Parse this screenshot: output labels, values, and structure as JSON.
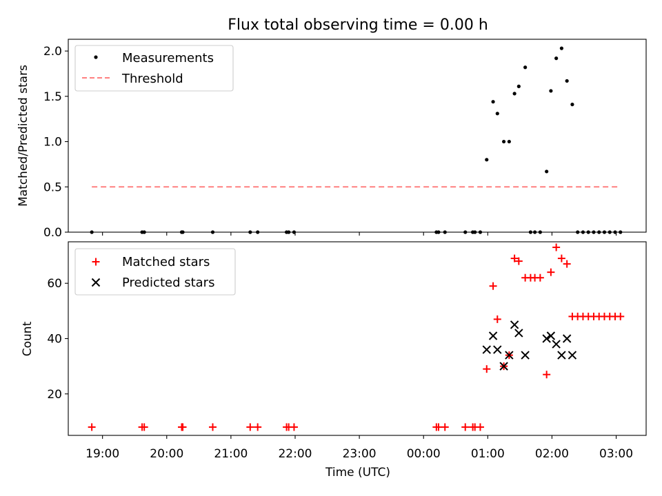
{
  "title": "Flux total observing time = 0.00 h",
  "xlabel": "Time (UTC)",
  "x_ticks": [
    "19:00",
    "20:00",
    "21:00",
    "22:00",
    "23:00",
    "00:00",
    "01:00",
    "02:00",
    "03:00"
  ],
  "colors": {
    "measurements": "#000000",
    "threshold": "#ff7f7f",
    "matched": "#ff0000",
    "predicted": "#000000"
  },
  "chart_data": [
    {
      "type": "scatter",
      "ylabel": "Matched/Predicted stars",
      "x_range": [
        "18:28",
        "03:28"
      ],
      "ylim": [
        0,
        2.13
      ],
      "y_ticks": [
        "0.0",
        "0.5",
        "1.0",
        "1.5",
        "2.0"
      ],
      "legend_position": "upper-left",
      "threshold": {
        "name": "Threshold",
        "value": 0.5,
        "x_range": [
          "18:50",
          "03:02"
        ],
        "style": "dashed"
      },
      "series": [
        {
          "name": "Measurements",
          "marker": "dot",
          "points": [
            [
              "18:50",
              0
            ],
            [
              "19:37",
              0
            ],
            [
              "19:39",
              0
            ],
            [
              "20:14",
              0
            ],
            [
              "20:15",
              0
            ],
            [
              "20:43",
              0
            ],
            [
              "21:18",
              0
            ],
            [
              "21:25",
              0
            ],
            [
              "21:52",
              0
            ],
            [
              "21:54",
              0
            ],
            [
              "21:59",
              0
            ],
            [
              "00:12",
              0
            ],
            [
              "00:14",
              0
            ],
            [
              "00:20",
              0
            ],
            [
              "00:39",
              0
            ],
            [
              "00:46",
              0
            ],
            [
              "00:48",
              0
            ],
            [
              "00:53",
              0
            ],
            [
              "00:59",
              0.8
            ],
            [
              "01:05",
              1.44
            ],
            [
              "01:09",
              1.31
            ],
            [
              "01:15",
              1.0
            ],
            [
              "01:20",
              1.0
            ],
            [
              "01:25",
              1.53
            ],
            [
              "01:29",
              1.61
            ],
            [
              "01:35",
              1.82
            ],
            [
              "01:40",
              0
            ],
            [
              "01:44",
              0
            ],
            [
              "01:49",
              0
            ],
            [
              "01:55",
              0.67
            ],
            [
              "01:59",
              1.56
            ],
            [
              "02:04",
              1.92
            ],
            [
              "02:09",
              2.03
            ],
            [
              "02:14",
              1.67
            ],
            [
              "02:19",
              1.41
            ],
            [
              "02:24",
              0
            ],
            [
              "02:29",
              0
            ],
            [
              "02:34",
              0
            ],
            [
              "02:39",
              0
            ],
            [
              "02:44",
              0
            ],
            [
              "02:49",
              0
            ],
            [
              "02:54",
              0
            ],
            [
              "02:59",
              0
            ],
            [
              "03:04",
              0
            ]
          ]
        }
      ]
    },
    {
      "type": "scatter",
      "ylabel": "Count",
      "x_range": [
        "18:28",
        "03:28"
      ],
      "ylim": [
        5,
        75
      ],
      "y_ticks": [
        "20",
        "40",
        "60"
      ],
      "legend_position": "upper-left",
      "series": [
        {
          "name": "Matched stars",
          "marker": "plus",
          "points": [
            [
              "18:50",
              8
            ],
            [
              "19:37",
              8
            ],
            [
              "19:39",
              8
            ],
            [
              "20:14",
              8
            ],
            [
              "20:15",
              8
            ],
            [
              "20:43",
              8
            ],
            [
              "21:18",
              8
            ],
            [
              "21:25",
              8
            ],
            [
              "21:52",
              8
            ],
            [
              "21:54",
              8
            ],
            [
              "21:59",
              8
            ],
            [
              "00:12",
              8
            ],
            [
              "00:14",
              8
            ],
            [
              "00:20",
              8
            ],
            [
              "00:39",
              8
            ],
            [
              "00:46",
              8
            ],
            [
              "00:48",
              8
            ],
            [
              "00:53",
              8
            ],
            [
              "00:59",
              29
            ],
            [
              "01:05",
              59
            ],
            [
              "01:09",
              47
            ],
            [
              "01:15",
              30
            ],
            [
              "01:20",
              34
            ],
            [
              "01:25",
              69
            ],
            [
              "01:29",
              68
            ],
            [
              "01:35",
              62
            ],
            [
              "01:40",
              62
            ],
            [
              "01:44",
              62
            ],
            [
              "01:49",
              62
            ],
            [
              "01:55",
              27
            ],
            [
              "01:59",
              64
            ],
            [
              "02:04",
              73
            ],
            [
              "02:09",
              69
            ],
            [
              "02:14",
              67
            ],
            [
              "02:19",
              48
            ],
            [
              "02:24",
              48
            ],
            [
              "02:29",
              48
            ],
            [
              "02:34",
              48
            ],
            [
              "02:39",
              48
            ],
            [
              "02:44",
              48
            ],
            [
              "02:49",
              48
            ],
            [
              "02:54",
              48
            ],
            [
              "02:59",
              48
            ],
            [
              "03:04",
              48
            ]
          ]
        },
        {
          "name": "Predicted stars",
          "marker": "x",
          "points": [
            [
              "00:59",
              36
            ],
            [
              "01:05",
              41
            ],
            [
              "01:09",
              36
            ],
            [
              "01:15",
              30
            ],
            [
              "01:20",
              34
            ],
            [
              "01:25",
              45
            ],
            [
              "01:29",
              42
            ],
            [
              "01:35",
              34
            ],
            [
              "01:55",
              40
            ],
            [
              "01:59",
              41
            ],
            [
              "02:04",
              38
            ],
            [
              "02:09",
              34
            ],
            [
              "02:14",
              40
            ],
            [
              "02:19",
              34
            ]
          ]
        }
      ]
    }
  ]
}
